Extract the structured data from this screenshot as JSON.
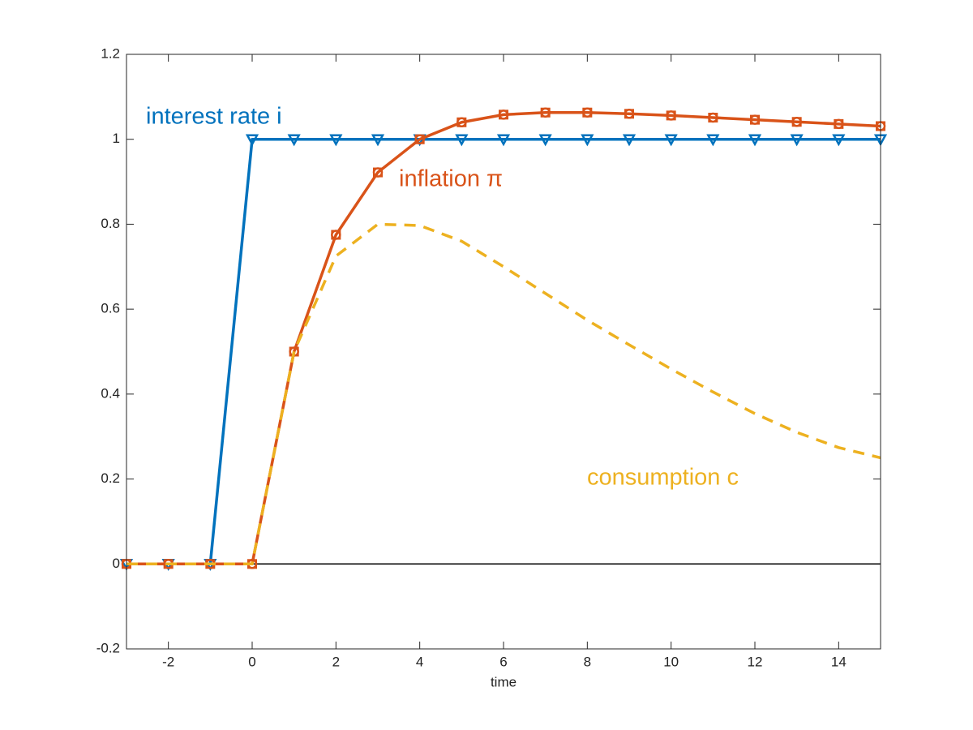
{
  "chart_data": {
    "type": "line",
    "x_label": "time",
    "x": [
      -3,
      -2,
      -1,
      0,
      1,
      2,
      3,
      4,
      5,
      6,
      7,
      8,
      9,
      10,
      11,
      12,
      13,
      14,
      15
    ],
    "series": [
      {
        "name": "interest rate i",
        "color": "#0072bd",
        "marker": "triangle-down",
        "line_style": "solid",
        "values": [
          0,
          0,
          0,
          1,
          1,
          1,
          1,
          1,
          1,
          1,
          1,
          1,
          1,
          1,
          1,
          1,
          1,
          1,
          1
        ]
      },
      {
        "name": "inflation π",
        "color": "#d95319",
        "marker": "circle-square",
        "line_style": "solid",
        "values": [
          0,
          0,
          0,
          0,
          0.5,
          0.775,
          0.922,
          1.0,
          1.04,
          1.058,
          1.063,
          1.063,
          1.06,
          1.056,
          1.051,
          1.046,
          1.041,
          1.036,
          1.031
        ]
      },
      {
        "name": "consumption c",
        "color": "#edb120",
        "line_style": "dashed",
        "values": [
          0,
          0,
          0,
          0,
          0.5,
          0.725,
          0.8,
          0.797,
          0.76,
          0.7,
          0.637,
          0.574,
          0.516,
          0.459,
          0.405,
          0.354,
          0.31,
          0.274,
          0.25
        ]
      }
    ],
    "xlim": [
      -3,
      15
    ],
    "ylim": [
      -0.2,
      1.2
    ],
    "xticks": [
      -2,
      0,
      2,
      4,
      6,
      8,
      10,
      12,
      14
    ],
    "yticks": [
      -0.2,
      0,
      0.2,
      0.4,
      0.6,
      0.8,
      1,
      1.2
    ]
  }
}
